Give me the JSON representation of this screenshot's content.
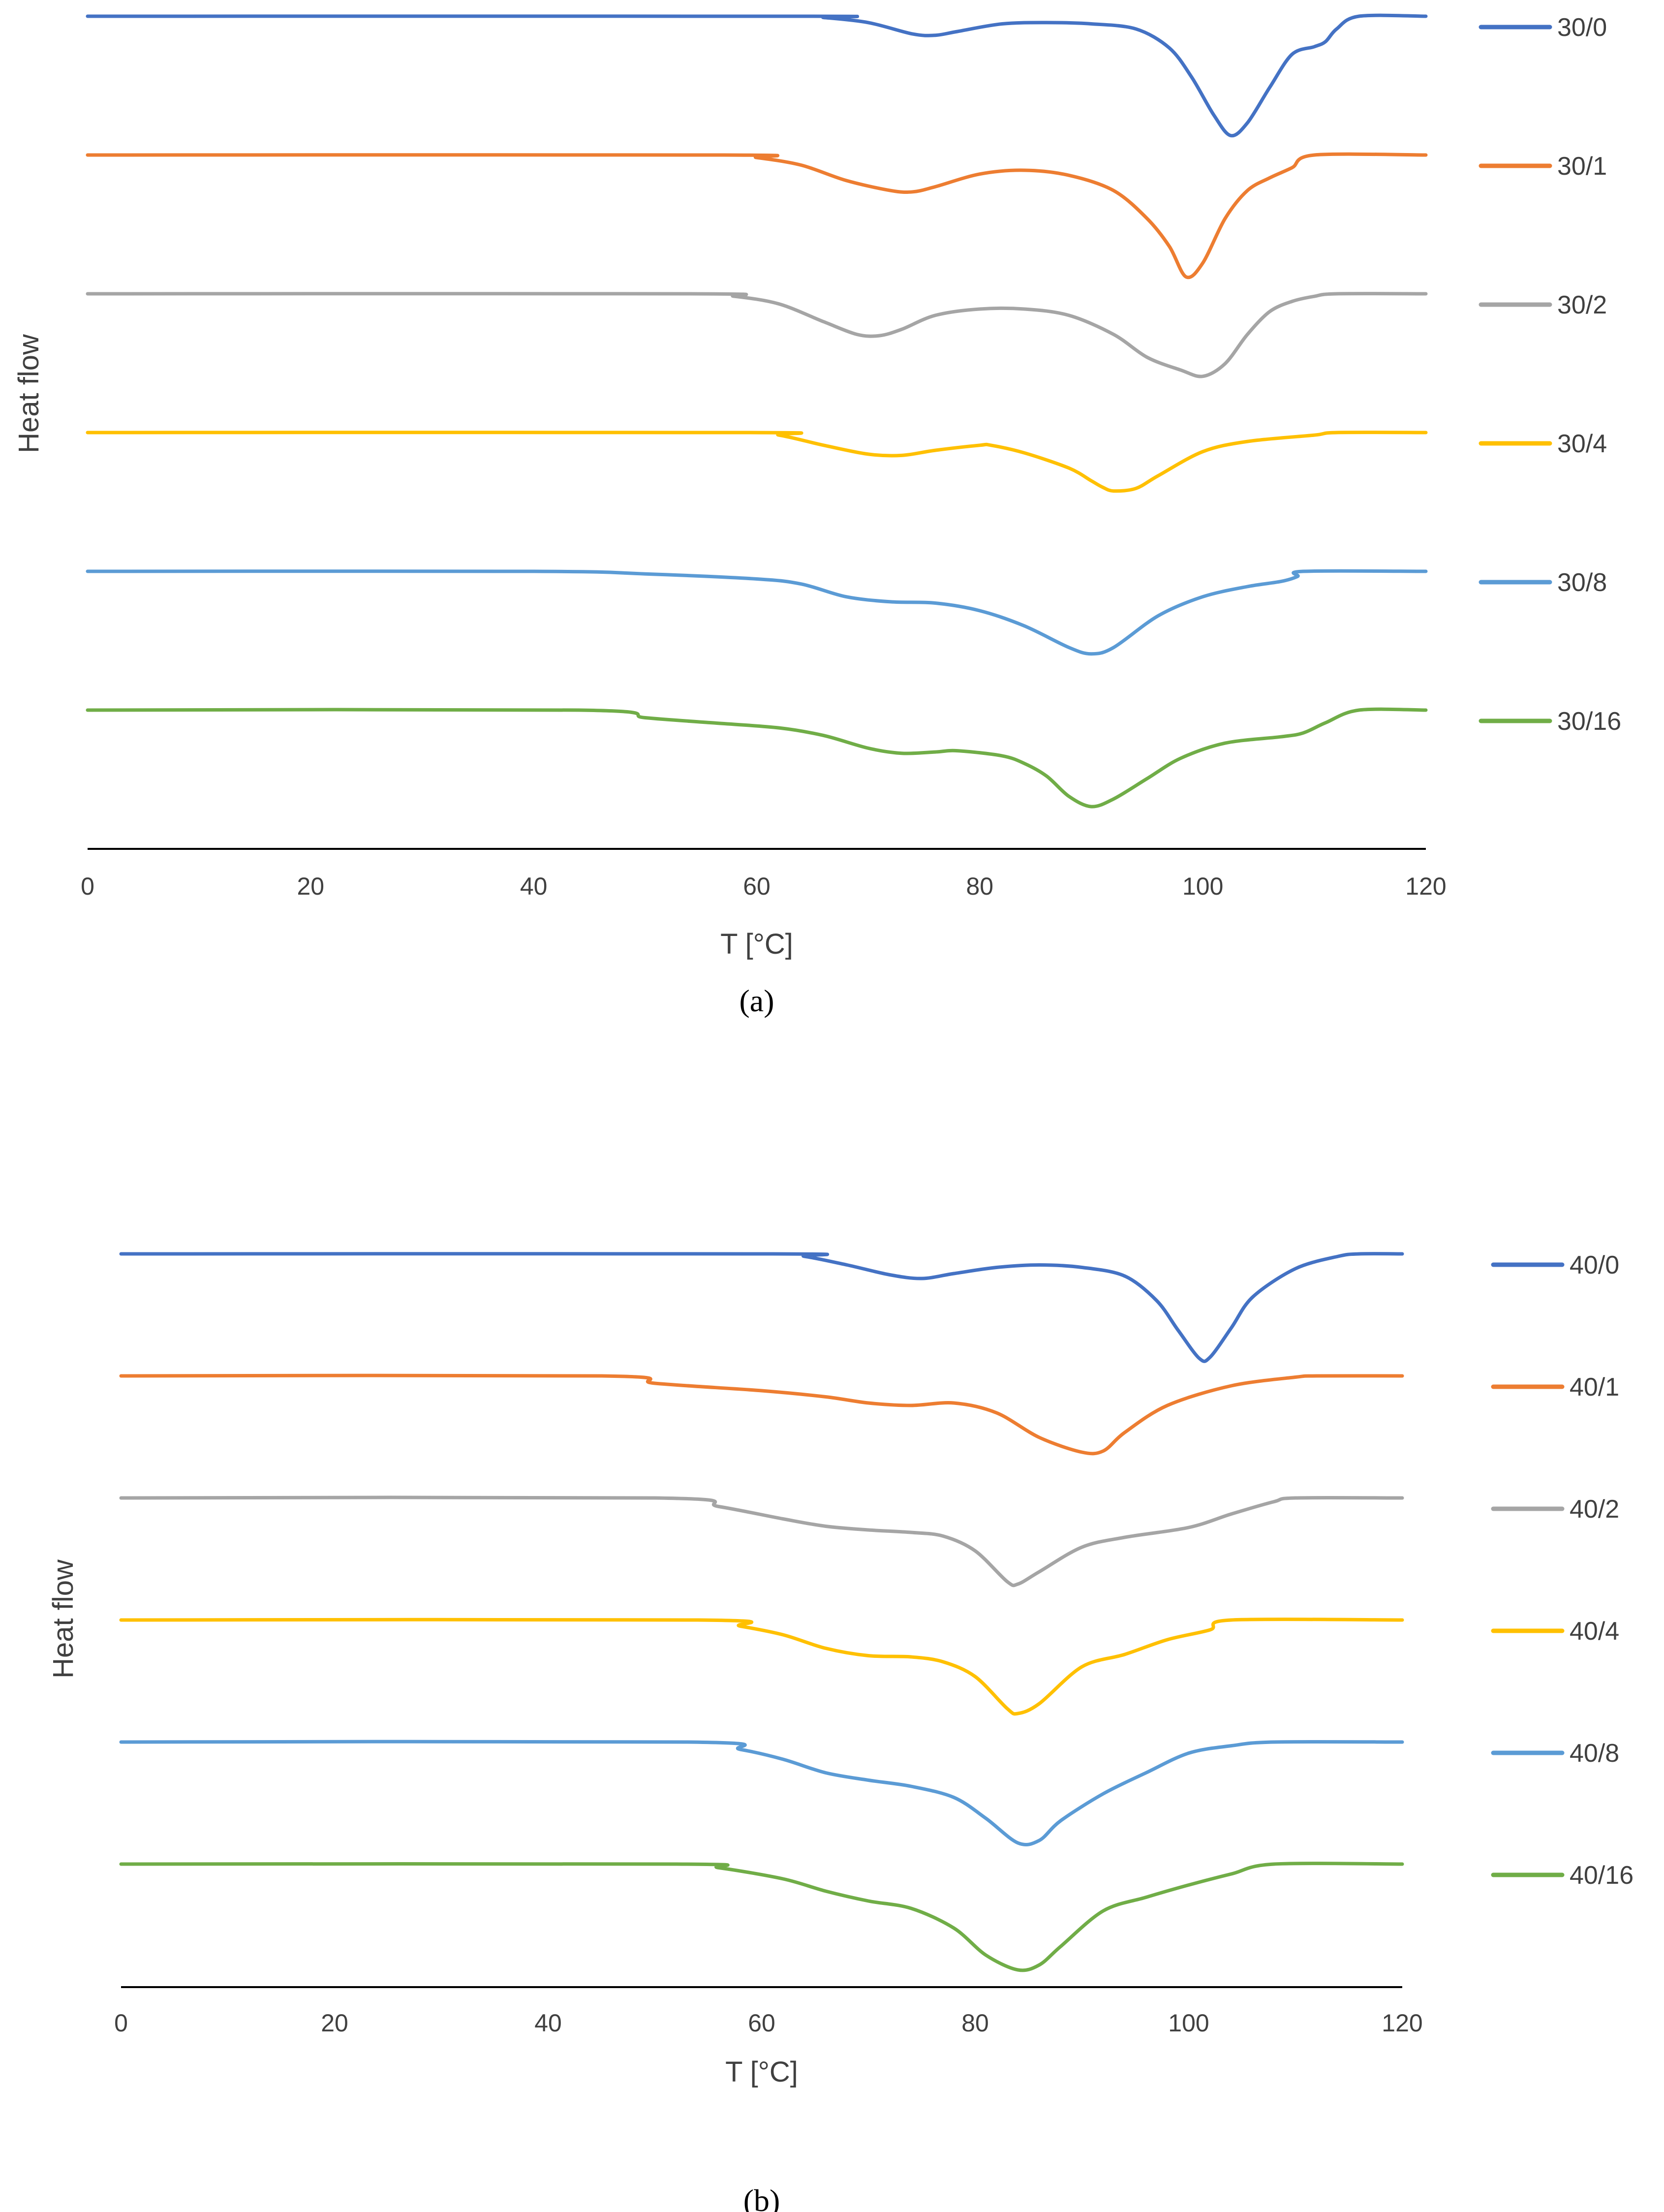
{
  "chart_data": [
    {
      "type": "line",
      "panel": "(a)",
      "title": "",
      "xlabel": "T [°C]",
      "ylabel": "Heat flow",
      "xlim": [
        0,
        120
      ],
      "xticks": [
        0,
        20,
        40,
        60,
        80,
        100,
        120
      ],
      "ylim": [
        -1.1,
        0.05
      ],
      "grid": false,
      "legend_position": "right",
      "series": [
        {
          "name": "30/0",
          "color": "#4472C4",
          "points": [
            [
              0,
              0
            ],
            [
              64,
              0
            ],
            [
              66,
              -0.01
            ],
            [
              70,
              -0.05
            ],
            [
              74,
              -0.14
            ],
            [
              76,
              -0.15
            ],
            [
              78,
              -0.12
            ],
            [
              82,
              -0.06
            ],
            [
              86,
              -0.05
            ],
            [
              90,
              -0.06
            ],
            [
              94,
              -0.1
            ],
            [
              97,
              -0.25
            ],
            [
              99,
              -0.48
            ],
            [
              101,
              -0.78
            ],
            [
              102.5,
              -0.94
            ],
            [
              104,
              -0.84
            ],
            [
              106,
              -0.56
            ],
            [
              108,
              -0.3
            ],
            [
              110,
              -0.24
            ],
            [
              111,
              -0.2
            ],
            [
              112,
              -0.1
            ],
            [
              114,
              0
            ],
            [
              120,
              0
            ]
          ]
        },
        {
          "name": "30/1",
          "color": "#ED7D31",
          "points": [
            [
              0,
              0
            ],
            [
              57,
              0
            ],
            [
              60,
              -0.02
            ],
            [
              64,
              -0.08
            ],
            [
              68,
              -0.2
            ],
            [
              72,
              -0.28
            ],
            [
              74,
              -0.29
            ],
            [
              76,
              -0.25
            ],
            [
              80,
              -0.15
            ],
            [
              84,
              -0.12
            ],
            [
              88,
              -0.16
            ],
            [
              92,
              -0.28
            ],
            [
              95,
              -0.5
            ],
            [
              97,
              -0.72
            ],
            [
              98.5,
              -0.96
            ],
            [
              100,
              -0.85
            ],
            [
              102,
              -0.5
            ],
            [
              104,
              -0.28
            ],
            [
              106,
              -0.18
            ],
            [
              108,
              -0.1
            ],
            [
              110,
              0
            ],
            [
              120,
              0
            ]
          ]
        },
        {
          "name": "30/2",
          "color": "#A5A5A5",
          "points": [
            [
              0,
              0
            ],
            [
              54,
              0
            ],
            [
              58,
              -0.02
            ],
            [
              62,
              -0.08
            ],
            [
              66,
              -0.22
            ],
            [
              69,
              -0.32
            ],
            [
              71,
              -0.33
            ],
            [
              73,
              -0.28
            ],
            [
              76,
              -0.17
            ],
            [
              80,
              -0.12
            ],
            [
              84,
              -0.12
            ],
            [
              88,
              -0.17
            ],
            [
              92,
              -0.32
            ],
            [
              95,
              -0.5
            ],
            [
              98,
              -0.6
            ],
            [
              100,
              -0.65
            ],
            [
              102,
              -0.55
            ],
            [
              104,
              -0.32
            ],
            [
              106,
              -0.14
            ],
            [
              108,
              -0.06
            ],
            [
              110,
              -0.02
            ],
            [
              112,
              0
            ],
            [
              120,
              0
            ]
          ]
        },
        {
          "name": "30/4",
          "color": "#FFC000",
          "points": [
            [
              0,
              0
            ],
            [
              59,
              0
            ],
            [
              62,
              -0.02
            ],
            [
              66,
              -0.1
            ],
            [
              70,
              -0.17
            ],
            [
              73,
              -0.18
            ],
            [
              76,
              -0.14
            ],
            [
              80,
              -0.1
            ],
            [
              81,
              -0.1
            ],
            [
              84,
              -0.16
            ],
            [
              88,
              -0.28
            ],
            [
              90,
              -0.38
            ],
            [
              91,
              -0.43
            ],
            [
              92,
              -0.46
            ],
            [
              94,
              -0.44
            ],
            [
              96,
              -0.34
            ],
            [
              100,
              -0.15
            ],
            [
              104,
              -0.07
            ],
            [
              110,
              -0.02
            ],
            [
              112,
              0
            ],
            [
              120,
              0
            ]
          ]
        },
        {
          "name": "30/8",
          "color": "#5B9BD5",
          "points": [
            [
              0,
              0
            ],
            [
              40,
              0
            ],
            [
              50,
              -0.02
            ],
            [
              60,
              -0.06
            ],
            [
              64,
              -0.1
            ],
            [
              68,
              -0.2
            ],
            [
              72,
              -0.24
            ],
            [
              76,
              -0.25
            ],
            [
              80,
              -0.31
            ],
            [
              84,
              -0.43
            ],
            [
              88,
              -0.6
            ],
            [
              90,
              -0.65
            ],
            [
              92,
              -0.6
            ],
            [
              96,
              -0.35
            ],
            [
              100,
              -0.2
            ],
            [
              104,
              -0.12
            ],
            [
              107,
              -0.08
            ],
            [
              108.5,
              -0.04
            ],
            [
              109,
              0
            ],
            [
              120,
              0
            ]
          ]
        },
        {
          "name": "30/16",
          "color": "#70AD47",
          "points": [
            [
              0,
              0
            ],
            [
              44,
              0
            ],
            [
              50,
              -0.06
            ],
            [
              56,
              -0.1
            ],
            [
              62,
              -0.14
            ],
            [
              66,
              -0.2
            ],
            [
              70,
              -0.3
            ],
            [
              73,
              -0.34
            ],
            [
              76,
              -0.33
            ],
            [
              78,
              -0.32
            ],
            [
              82,
              -0.36
            ],
            [
              84,
              -0.42
            ],
            [
              86,
              -0.52
            ],
            [
              88,
              -0.68
            ],
            [
              90,
              -0.76
            ],
            [
              92,
              -0.7
            ],
            [
              95,
              -0.54
            ],
            [
              98,
              -0.38
            ],
            [
              102,
              -0.26
            ],
            [
              107,
              -0.21
            ],
            [
              109,
              -0.18
            ],
            [
              111,
              -0.1
            ],
            [
              114,
              0
            ],
            [
              120,
              0
            ]
          ]
        }
      ]
    },
    {
      "type": "line",
      "panel": "(b)",
      "title": "",
      "xlabel": "T [°C]",
      "ylabel": "Heat flow",
      "xlim": [
        0,
        120
      ],
      "xticks": [
        0,
        20,
        40,
        60,
        80,
        100,
        120
      ],
      "ylim": [
        -1.1,
        0.05
      ],
      "grid": false,
      "legend_position": "right",
      "series": [
        {
          "name": "40/0",
          "color": "#4472C4",
          "points": [
            [
              0,
              0
            ],
            [
              61,
              0
            ],
            [
              64,
              -0.02
            ],
            [
              68,
              -0.09
            ],
            [
              72,
              -0.17
            ],
            [
              75,
              -0.2
            ],
            [
              78,
              -0.16
            ],
            [
              82,
              -0.11
            ],
            [
              86,
              -0.09
            ],
            [
              90,
              -0.11
            ],
            [
              94,
              -0.18
            ],
            [
              97,
              -0.38
            ],
            [
              99,
              -0.62
            ],
            [
              101,
              -0.85
            ],
            [
              102,
              -0.84
            ],
            [
              104,
              -0.6
            ],
            [
              106,
              -0.35
            ],
            [
              110,
              -0.12
            ],
            [
              114,
              -0.02
            ],
            [
              116,
              0
            ],
            [
              120,
              0
            ]
          ]
        },
        {
          "name": "40/1",
          "color": "#ED7D31",
          "points": [
            [
              0,
              0
            ],
            [
              45,
              0
            ],
            [
              50,
              -0.06
            ],
            [
              60,
              -0.12
            ],
            [
              66,
              -0.17
            ],
            [
              70,
              -0.22
            ],
            [
              74,
              -0.24
            ],
            [
              78,
              -0.22
            ],
            [
              82,
              -0.3
            ],
            [
              86,
              -0.5
            ],
            [
              90,
              -0.62
            ],
            [
              92,
              -0.61
            ],
            [
              94,
              -0.46
            ],
            [
              98,
              -0.24
            ],
            [
              104,
              -0.08
            ],
            [
              110,
              -0.01
            ],
            [
              112,
              0
            ],
            [
              120,
              0
            ]
          ]
        },
        {
          "name": "40/2",
          "color": "#A5A5A5",
          "points": [
            [
              0,
              0
            ],
            [
              50,
              0
            ],
            [
              56,
              -0.07
            ],
            [
              62,
              -0.17
            ],
            [
              66,
              -0.23
            ],
            [
              70,
              -0.26
            ],
            [
              74,
              -0.28
            ],
            [
              77,
              -0.31
            ],
            [
              80,
              -0.43
            ],
            [
              83,
              -0.68
            ],
            [
              84,
              -0.7
            ],
            [
              86,
              -0.6
            ],
            [
              90,
              -0.4
            ],
            [
              94,
              -0.32
            ],
            [
              100,
              -0.24
            ],
            [
              104,
              -0.13
            ],
            [
              108,
              -0.03
            ],
            [
              110,
              0
            ],
            [
              120,
              0
            ]
          ]
        },
        {
          "name": "40/4",
          "color": "#FFC000",
          "points": [
            [
              0,
              0
            ],
            [
              54,
              0
            ],
            [
              58,
              -0.05
            ],
            [
              62,
              -0.12
            ],
            [
              66,
              -0.23
            ],
            [
              70,
              -0.29
            ],
            [
              74,
              -0.3
            ],
            [
              77,
              -0.34
            ],
            [
              80,
              -0.46
            ],
            [
              83,
              -0.72
            ],
            [
              84,
              -0.76
            ],
            [
              86,
              -0.68
            ],
            [
              90,
              -0.38
            ],
            [
              94,
              -0.28
            ],
            [
              98,
              -0.16
            ],
            [
              102,
              -0.08
            ],
            [
              104,
              0
            ],
            [
              120,
              0
            ]
          ]
        },
        {
          "name": "40/8",
          "color": "#5B9BD5",
          "points": [
            [
              0,
              0
            ],
            [
              53,
              0
            ],
            [
              58,
              -0.06
            ],
            [
              62,
              -0.14
            ],
            [
              66,
              -0.25
            ],
            [
              70,
              -0.31
            ],
            [
              74,
              -0.36
            ],
            [
              78,
              -0.45
            ],
            [
              81,
              -0.62
            ],
            [
              84,
              -0.82
            ],
            [
              86,
              -0.8
            ],
            [
              88,
              -0.64
            ],
            [
              92,
              -0.42
            ],
            [
              96,
              -0.25
            ],
            [
              100,
              -0.09
            ],
            [
              104,
              -0.03
            ],
            [
              108,
              0
            ],
            [
              120,
              0
            ]
          ]
        },
        {
          "name": "40/16",
          "color": "#70AD47",
          "points": [
            [
              0,
              0
            ],
            [
              52,
              0
            ],
            [
              56,
              -0.03
            ],
            [
              62,
              -0.12
            ],
            [
              66,
              -0.22
            ],
            [
              70,
              -0.3
            ],
            [
              74,
              -0.36
            ],
            [
              78,
              -0.52
            ],
            [
              81,
              -0.74
            ],
            [
              84,
              -0.86
            ],
            [
              86,
              -0.82
            ],
            [
              88,
              -0.67
            ],
            [
              92,
              -0.38
            ],
            [
              96,
              -0.27
            ],
            [
              100,
              -0.17
            ],
            [
              104,
              -0.08
            ],
            [
              108,
              0
            ],
            [
              120,
              0
            ]
          ]
        }
      ]
    }
  ]
}
